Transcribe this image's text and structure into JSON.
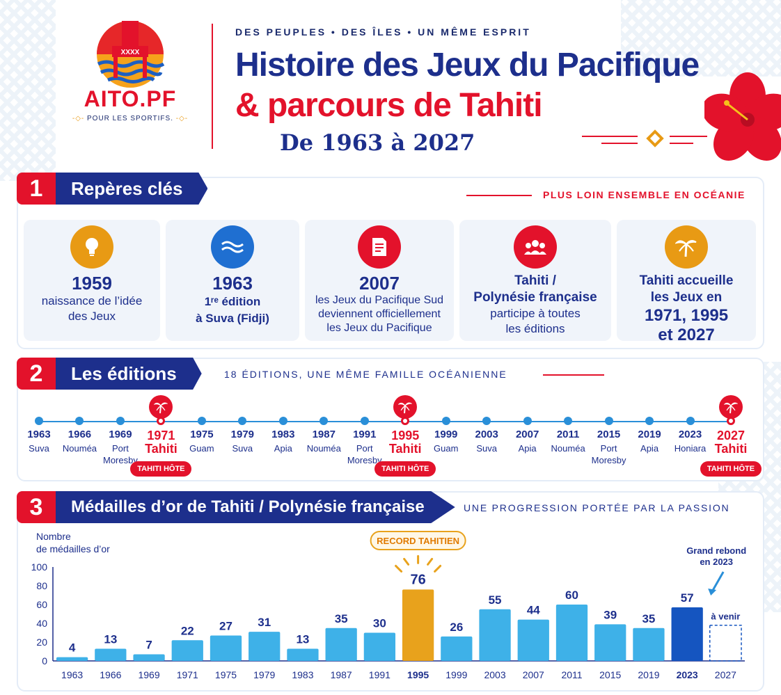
{
  "header": {
    "logo_name": "AITO.PF",
    "logo_tagline": "POUR LES SPORTIFS.",
    "logo_flag_text": "XXXX",
    "tagline": "DES PEUPLES • DES ÎLES • UN MÊME ESPRIT",
    "title_line1": "Histoire des Jeux du Pacifique",
    "title_line2": "& parcours de Tahiti",
    "title_line3": "De 1963 à 2027"
  },
  "section1": {
    "number": "1",
    "title": "Repères clés",
    "subtitle": "PLUS LOIN ENSEMBLE EN OCÉANIE",
    "cards": [
      {
        "icon": "lightbulb-icon",
        "color": "#e89a14",
        "big": "1959",
        "text1": "naissance de l’idée",
        "text2": "des Jeux"
      },
      {
        "icon": "waves-icon",
        "color": "#1f6fd1",
        "big": "1963",
        "text1": "1ʳᵉ édition",
        "text2": "à Suva (Fidji)"
      },
      {
        "icon": "document-icon",
        "color": "#e3122b",
        "big": "2007",
        "text1": "les Jeux du Pacifique Sud",
        "text2": "deviennent officiellement",
        "text3": "les Jeux du Pacifique"
      },
      {
        "icon": "people-icon",
        "color": "#e3122b",
        "bold1": "Tahiti /",
        "bold2": "Polynésie française",
        "text1": "participe à toutes",
        "text2": "les éditions"
      },
      {
        "icon": "palm-icon",
        "color": "#e89a14",
        "bold1": "Tahiti accueille",
        "bold2": "les Jeux en",
        "big1": "1971, 1995",
        "big2": "et 2027"
      }
    ]
  },
  "section2": {
    "number": "2",
    "title": "Les éditions",
    "subtitle": "18 ÉDITIONS, UNE MÊME FAMILLE OCÉANIENNE",
    "host_badge": "TAHITI HÔTE",
    "editions": [
      {
        "year": "1963",
        "city": "Suva",
        "host": false
      },
      {
        "year": "1966",
        "city": "Nouméa",
        "host": false
      },
      {
        "year": "1969",
        "city": "Port Moresby",
        "host": false
      },
      {
        "year": "1971",
        "city": "Tahiti",
        "host": true
      },
      {
        "year": "1975",
        "city": "Guam",
        "host": false
      },
      {
        "year": "1979",
        "city": "Suva",
        "host": false
      },
      {
        "year": "1983",
        "city": "Apia",
        "host": false
      },
      {
        "year": "1987",
        "city": "Nouméa",
        "host": false
      },
      {
        "year": "1991",
        "city": "Port Moresby",
        "host": false
      },
      {
        "year": "1995",
        "city": "Tahiti",
        "host": true
      },
      {
        "year": "1999",
        "city": "Guam",
        "host": false
      },
      {
        "year": "2003",
        "city": "Suva",
        "host": false
      },
      {
        "year": "2007",
        "city": "Apia",
        "host": false
      },
      {
        "year": "2011",
        "city": "Nouméa",
        "host": false
      },
      {
        "year": "2015",
        "city": "Port Moresby",
        "host": false
      },
      {
        "year": "2019",
        "city": "Apia",
        "host": false
      },
      {
        "year": "2023",
        "city": "Honiara",
        "host": false
      },
      {
        "year": "2027",
        "city": "Tahiti",
        "host": true
      }
    ]
  },
  "section3": {
    "number": "3",
    "title": "Médailles d’or de Tahiti / Polynésie française",
    "subtitle": "UNE PROGRESSION PORTÉE PAR LA PASSION"
  },
  "chart_data": {
    "type": "bar",
    "ylabel": "Nombre de médailles d’or",
    "ylim": [
      0,
      100
    ],
    "yticks": [
      0,
      20,
      40,
      60,
      80,
      100
    ],
    "categories": [
      "1963",
      "1966",
      "1969",
      "1971",
      "1975",
      "1979",
      "1983",
      "1987",
      "1991",
      "1995",
      "1999",
      "2003",
      "2007",
      "2011",
      "2015",
      "2019",
      "2023",
      "2027"
    ],
    "values": [
      4,
      13,
      7,
      22,
      27,
      31,
      13,
      35,
      30,
      76,
      26,
      55,
      44,
      60,
      39,
      35,
      57,
      null
    ],
    "annotations": {
      "record_label": "RECORD TAHITIEN",
      "record_year": "1995",
      "rebound_label1": "Grand rebond",
      "rebound_label2": "en 2023",
      "future_label": "à venir"
    },
    "colors": {
      "default": "#3eb1e8",
      "record": "#e8a21c",
      "latest": "#1555c0",
      "text": "#1d2f8c"
    }
  }
}
